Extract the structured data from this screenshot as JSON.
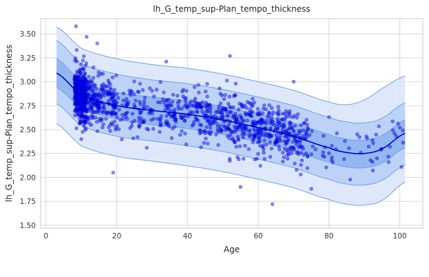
{
  "chart_data": {
    "type": "scatter",
    "title": "lh_G_temp_sup-Plan_tempo_thickness",
    "xlabel": "Age",
    "ylabel": "lh_G_temp_sup-Plan_tempo_thickness",
    "xlim": [
      -1.5,
      106.5
    ],
    "ylim": [
      1.47,
      3.66
    ],
    "xticks": [
      0,
      20,
      40,
      60,
      80,
      100
    ],
    "xtick_labels": [
      "0",
      "20",
      "40",
      "60",
      "80",
      "100"
    ],
    "yticks": [
      1.5,
      1.75,
      2.0,
      2.25,
      2.5,
      2.75,
      3.0,
      3.25,
      3.5
    ],
    "ytick_labels": [
      "1.50",
      "1.75",
      "2.00",
      "2.25",
      "2.50",
      "2.75",
      "3.00",
      "3.25",
      "3.50"
    ],
    "grid": true,
    "legend": "none",
    "colors": {
      "points": "#0000ff",
      "median": "#0000cc",
      "band_outer": "#dbe6fb",
      "band_middle": "#b9cff6",
      "band_inner": "#8fb3f0",
      "band_edge": "#6d9ee6",
      "grid": "#d6d6d6"
    },
    "curves": {
      "x": [
        3,
        10,
        20,
        30,
        40,
        50,
        60,
        70,
        80,
        85,
        90,
        95,
        101.5
      ],
      "median": [
        3.09,
        2.86,
        2.75,
        2.7,
        2.66,
        2.6,
        2.52,
        2.43,
        2.31,
        2.26,
        2.25,
        2.3,
        2.46
      ],
      "p25": [
        2.94,
        2.72,
        2.61,
        2.55,
        2.51,
        2.45,
        2.37,
        2.28,
        2.16,
        2.11,
        2.1,
        2.15,
        2.31
      ],
      "p75": [
        3.24,
        3.0,
        2.89,
        2.84,
        2.8,
        2.74,
        2.66,
        2.57,
        2.45,
        2.4,
        2.39,
        2.44,
        2.6
      ],
      "p05": [
        2.77,
        2.54,
        2.43,
        2.38,
        2.33,
        2.27,
        2.19,
        2.1,
        1.98,
        1.93,
        1.92,
        1.97,
        2.13
      ],
      "p95": [
        3.43,
        3.19,
        3.08,
        3.02,
        2.98,
        2.92,
        2.84,
        2.75,
        2.63,
        2.58,
        2.57,
        2.62,
        2.78
      ],
      "p01": [
        2.56,
        2.33,
        2.22,
        2.17,
        2.12,
        2.06,
        1.98,
        1.89,
        1.77,
        1.72,
        1.71,
        1.76,
        1.95
      ],
      "p99": [
        3.57,
        3.35,
        3.24,
        3.18,
        3.14,
        3.08,
        3.0,
        2.91,
        2.79,
        2.76,
        2.81,
        2.93,
        3.06
      ]
    },
    "scatter_model": {
      "point_count": 1320,
      "note_seed": 12345,
      "highlighted_points": [
        {
          "x": 8.5,
          "y": 3.58
        },
        {
          "x": 11.5,
          "y": 3.47
        },
        {
          "x": 14.5,
          "y": 3.4
        },
        {
          "x": 10.0,
          "y": 2.4
        },
        {
          "x": 19.0,
          "y": 2.05
        },
        {
          "x": 52.0,
          "y": 3.27
        },
        {
          "x": 64.0,
          "y": 1.72
        },
        {
          "x": 55.0,
          "y": 1.9
        },
        {
          "x": 100.0,
          "y": 2.52
        },
        {
          "x": 100.5,
          "y": 2.11
        },
        {
          "x": 70.0,
          "y": 3.0
        },
        {
          "x": 80.0,
          "y": 2.63
        },
        {
          "x": 84.5,
          "y": 2.38
        },
        {
          "x": 88.0,
          "y": 2.45
        },
        {
          "x": 75.0,
          "y": 1.88
        },
        {
          "x": 72.0,
          "y": 2.03
        },
        {
          "x": 34.0,
          "y": 3.21
        },
        {
          "x": 28.5,
          "y": 2.31
        }
      ]
    }
  }
}
